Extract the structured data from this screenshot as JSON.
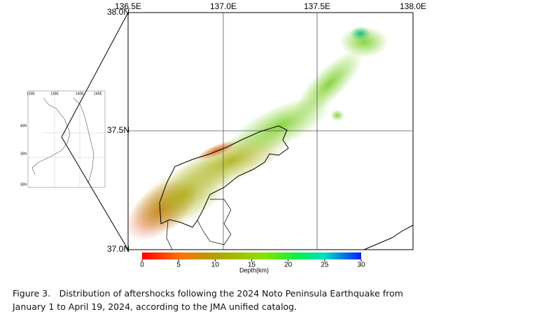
{
  "map": {
    "lon_labels": [
      "136.5E",
      "137.0E",
      "137.5E",
      "138.0E"
    ],
    "lat_labels": [
      "38.0N",
      "37.5N",
      "37.0N"
    ],
    "inset_lon_labels": [
      "130E",
      "135E",
      "140E",
      "145E"
    ],
    "inset_lat_labels": [
      "40N",
      "35N",
      "30N"
    ]
  },
  "colorbar": {
    "label": "Depth(km)",
    "range": [
      0,
      30
    ],
    "ticks": [
      0,
      5,
      10,
      15,
      20,
      25,
      30
    ]
  },
  "caption": {
    "line1": "Figure 3. Distribution of aftershocks following the 2024 Noto Peninsula Earthquake from",
    "line2": "January 1 to April 19, 2024, according to the JMA unified catalog."
  }
}
